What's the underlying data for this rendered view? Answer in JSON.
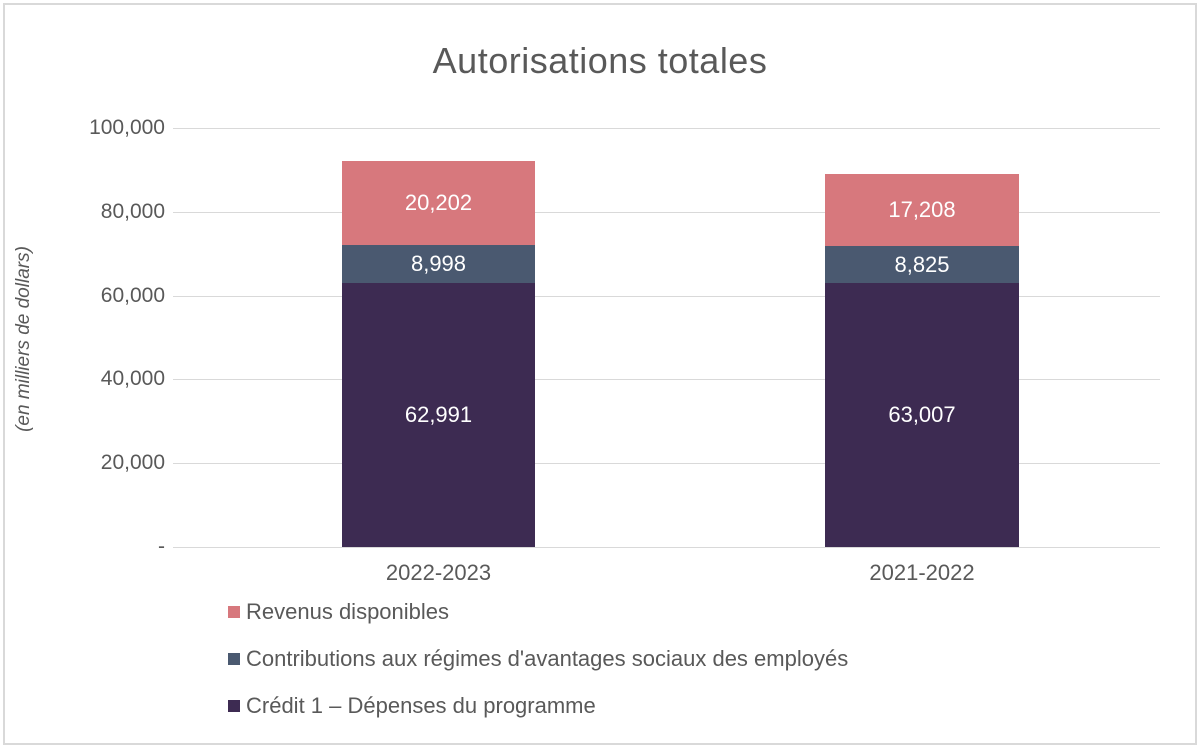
{
  "chart_data": {
    "type": "bar",
    "stacked": true,
    "title": "Autorisations totales",
    "ylabel": "(en milliers de dollars)",
    "categories": [
      "2022-2023",
      "2021-2022"
    ],
    "series": [
      {
        "name": "Crédit 1 – Dépenses du programme",
        "color": "#3D2B52",
        "values": [
          62991,
          63007
        ],
        "data_labels": [
          "62,991",
          "63,007"
        ]
      },
      {
        "name": "Contributions aux régimes d'avantages sociaux des employés",
        "color": "#4A5970",
        "values": [
          8998,
          8825
        ],
        "data_labels": [
          "8,998",
          "8,825"
        ]
      },
      {
        "name": "Revenus disponibles",
        "color": "#D7787D",
        "values": [
          20202,
          17208
        ],
        "data_labels": [
          "20,202",
          "17,208"
        ]
      }
    ],
    "ylim": [
      0,
      100000
    ],
    "y_ticks": [
      {
        "label": "100,000",
        "value": 100000
      },
      {
        "label": "80,000",
        "value": 80000
      },
      {
        "label": "60,000",
        "value": 60000
      },
      {
        "label": "40,000",
        "value": 40000
      },
      {
        "label": "20,000",
        "value": 20000
      },
      {
        "label": "-",
        "value": 0
      }
    ],
    "grid": true,
    "legend_position": "bottom-left",
    "legend_order": [
      "Revenus disponibles",
      "Contributions aux régimes d'avantages sociaux des employés",
      "Crédit 1 – Dépenses du programme"
    ]
  },
  "colors": {
    "text": "#595959",
    "gridline": "#D9D9D9",
    "frame_border": "#D9D9D9",
    "data_label": "#FFFFFF",
    "series_revenus": "#D7787D",
    "series_contributions": "#4A5970",
    "series_credit1": "#3D2B52"
  }
}
